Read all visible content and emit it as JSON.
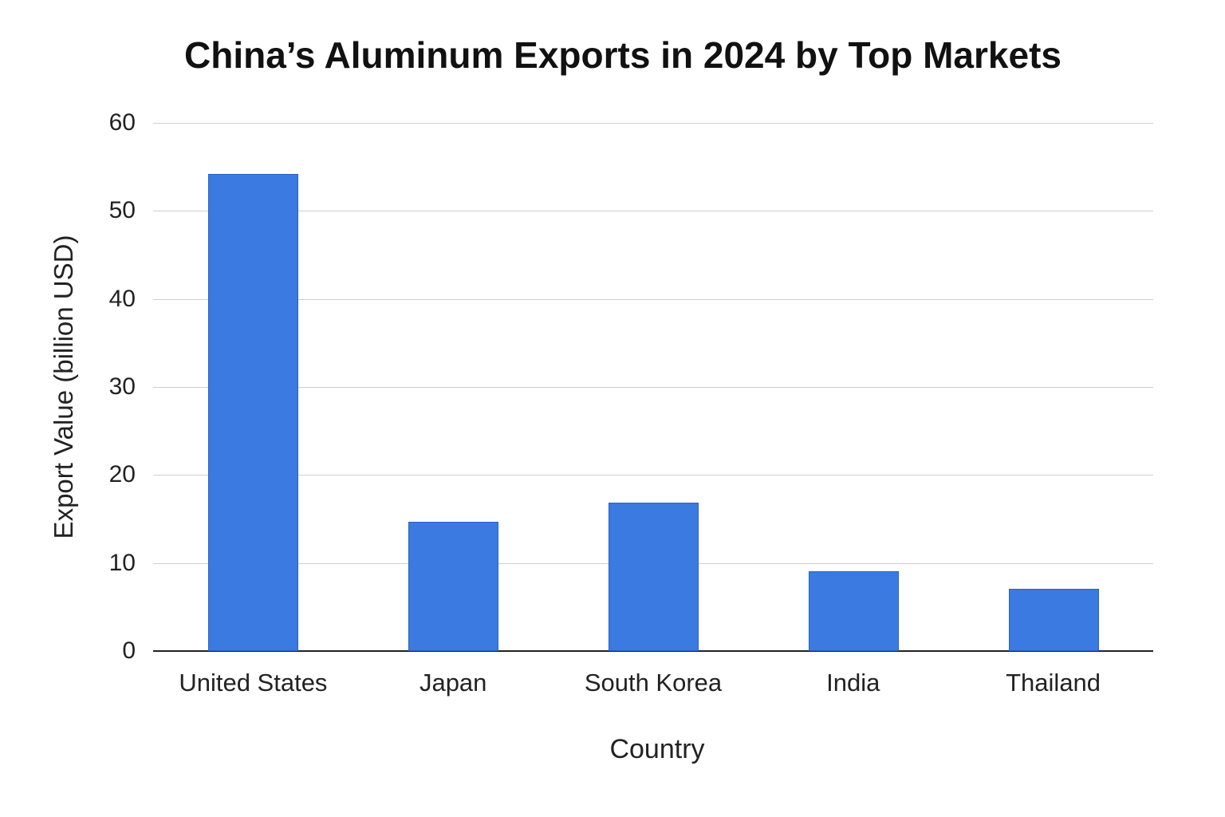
{
  "chart_data": {
    "type": "bar",
    "title": "China’s Aluminum Exports in 2024 by Top Markets",
    "xlabel": "Country",
    "ylabel": "Export Value (billion USD)",
    "categories": [
      "United States",
      "Japan",
      "South Korea",
      "India",
      "Thailand"
    ],
    "values": [
      54.2,
      14.7,
      16.9,
      9.1,
      7.1
    ],
    "ylim": [
      0,
      60
    ],
    "yticks": [
      "0",
      "10",
      "20",
      "30",
      "40",
      "50",
      "60"
    ],
    "grid": true,
    "legend": null,
    "bar_color": "#3b7ae0"
  }
}
